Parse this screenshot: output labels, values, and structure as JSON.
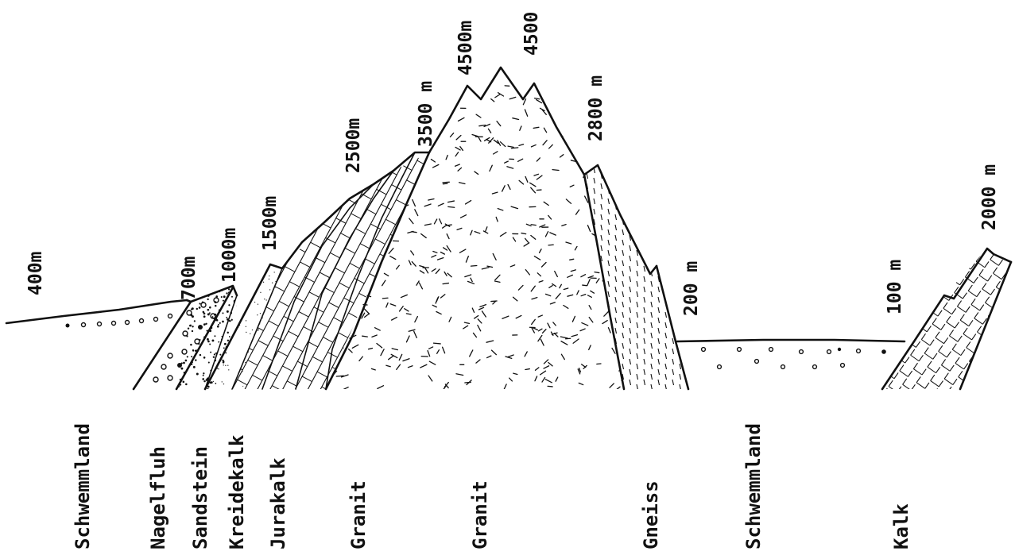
{
  "elevations": {
    "e400": "400m",
    "e700": "700m",
    "e1000": "1000m",
    "e1500": "1500m",
    "e2500": "2500m",
    "e3500": "3500 m",
    "e4500a": "4500m",
    "e4500b": "4500",
    "e2800": "2800 m",
    "e200": "200 m",
    "e100": "100 m",
    "e2000": "2000 m"
  },
  "layers": {
    "l1": "Schwemmland",
    "l2": "Nagelfluh",
    "l3": "Sandstein",
    "l4": "Kreidekalk",
    "l5": "Jurakalk",
    "l6": "Granit",
    "l7": "Granit",
    "l8": "Gneiss",
    "l9": "Schwemmland",
    "l10": "Kalk"
  },
  "colors": {
    "ink": "#111111",
    "paper": "#ffffff"
  }
}
